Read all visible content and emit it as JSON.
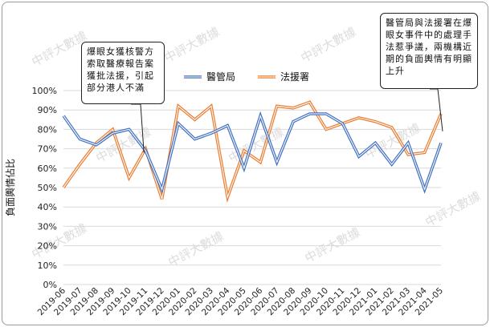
{
  "chart_data": {
    "type": "line",
    "categories": [
      "2019-06",
      "2019-07",
      "2019-08",
      "2019-09",
      "2019-10",
      "2019-11",
      "2019-12",
      "2020-01",
      "2020-02",
      "2020-03",
      "2020-04",
      "2020-05",
      "2020-06",
      "2020-07",
      "2020-08",
      "2020-09",
      "2020-10",
      "2020-11",
      "2020-12",
      "2021-01",
      "2021-02",
      "2021-03",
      "2021-04",
      "2021-05"
    ],
    "x": [
      "2019-06",
      "2019-06.5",
      "2019-07",
      "2019-07.5",
      "2019-08",
      "2019-08.5",
      "2019-09",
      "2019-09.5",
      "2019-10",
      "2019-10.5",
      "2019-11",
      "2019-11.5",
      "2019-12",
      "2019-12.5",
      "2020-01",
      "2020-01.5",
      "2020-02",
      "2020-02.5",
      "2020-03",
      "2020-03.5",
      "2020-04",
      "2020-04.5",
      "2020-05",
      "2020-05.5",
      "2020-06",
      "2020-06.5",
      "2020-07",
      "2020-07.5",
      "2020-08",
      "2020-08.5",
      "2020-09",
      "2020-09.5",
      "2020-10",
      "2020-10.5",
      "2020-11",
      "2020-11.5",
      "2020-12",
      "2020-12.5",
      "2021-01",
      "2021-01.5",
      "2021-02",
      "2021-02.5",
      "2021-03",
      "2021-03.5",
      "2021-04",
      "2021-04.5",
      "2021-05"
    ],
    "series": [
      {
        "name": "醫管局",
        "color": "#4472C4",
        "values": [
          87,
          75,
          72,
          78,
          80,
          69,
          49,
          83,
          75,
          78,
          82,
          60,
          87,
          63,
          84,
          88,
          88,
          83,
          66,
          73,
          62,
          73,
          49,
          73
        ]
      },
      {
        "name": "法援署",
        "color": "#ED7D31",
        "values": [
          50,
          62,
          73,
          80,
          55,
          70,
          44,
          92,
          85,
          92,
          45,
          69,
          63,
          92,
          91,
          94,
          80,
          83,
          86,
          84,
          81,
          67,
          68,
          88
        ]
      }
    ],
    "ylabel": "負面輿情佔比",
    "ylim": [
      0,
      100
    ],
    "yticks": [
      "0%",
      "10%",
      "20%",
      "30%",
      "40%",
      "50%",
      "60%",
      "70%",
      "80%",
      "90%",
      "100%"
    ],
    "legend_position": "top-center",
    "grid": true,
    "watermark": "中評大數據",
    "annotations": [
      {
        "text": "爆眼女獲核警方索取醫療報告案獲批法援，引起部分港人不滿",
        "target": "2019-11"
      },
      {
        "text": "醫管局與法援署在爆眼女事件中的處理手法惹爭議，兩機構近期的負面輿情有明顯上升",
        "target": "2021-05"
      }
    ]
  }
}
